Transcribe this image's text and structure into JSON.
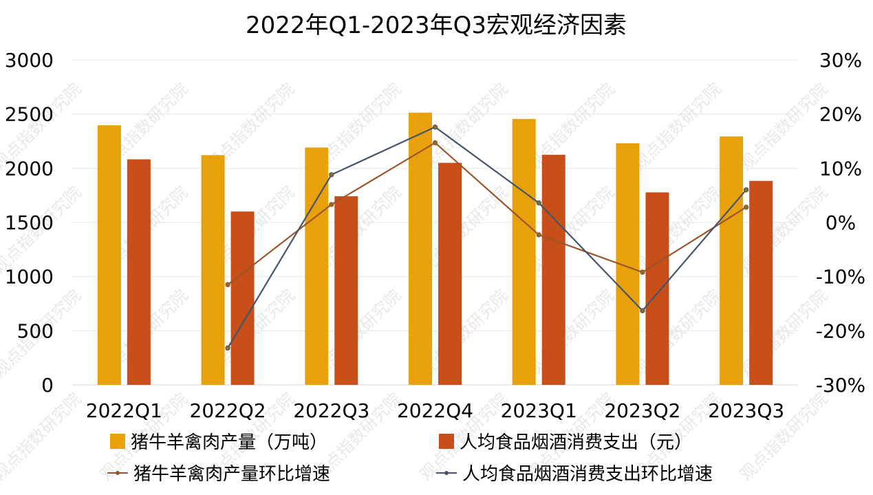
{
  "chart_data": {
    "type": "bar",
    "title": "2022年Q1-2023年Q3宏观经济因素",
    "categories": [
      "2022Q1",
      "2022Q2",
      "2022Q3",
      "2022Q4",
      "2023Q1",
      "2023Q2",
      "2023Q3"
    ],
    "series": [
      {
        "name": "猪牛羊禽肉产量（万吨）",
        "type": "bar",
        "axis": "left",
        "color": "#E8A10A",
        "values": [
          2396,
          2121,
          2191,
          2513,
          2455,
          2230,
          2293
        ]
      },
      {
        "name": "人均食品烟酒消费支出（元）",
        "type": "bar",
        "axis": "left",
        "color": "#C84E1A",
        "values": [
          2082,
          1600,
          1741,
          2050,
          2124,
          1777,
          1883
        ]
      },
      {
        "name": "猪牛羊禽肉产量环比增速",
        "type": "line",
        "axis": "right",
        "color": "#9C552B",
        "values": [
          null,
          -11.5,
          3.3,
          14.7,
          -2.3,
          -9.2,
          2.8
        ]
      },
      {
        "name": "人均食品烟酒消费支出环比增速",
        "type": "line",
        "axis": "right",
        "color": "#44546A",
        "values": [
          null,
          -23.2,
          8.8,
          17.6,
          3.6,
          -16.3,
          6.0
        ]
      }
    ],
    "y_left": {
      "ylim": [
        0,
        3000
      ],
      "ticks": [
        "0",
        "500",
        "1000",
        "1500",
        "2000",
        "2500",
        "3000"
      ]
    },
    "y_right": {
      "ylim": [
        -30,
        30
      ],
      "ticks": [
        "-30%",
        "-20%",
        "-10%",
        "0%",
        "10%",
        "20%",
        "30%"
      ]
    },
    "grid": true,
    "legend_position": "bottom",
    "watermark": "观点指数研究院"
  }
}
